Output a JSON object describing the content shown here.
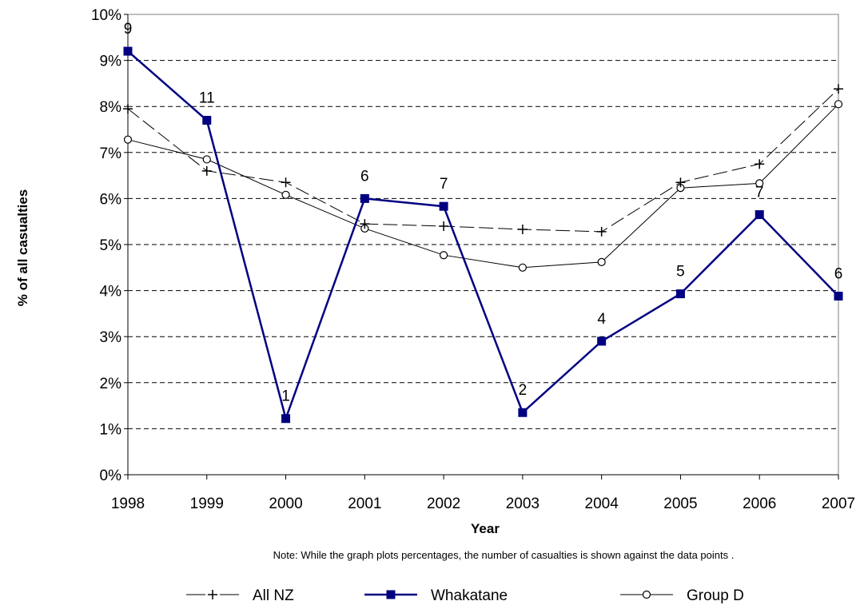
{
  "chart_data": {
    "type": "line",
    "title": "",
    "xlabel": "Year",
    "ylabel": "% of all casualties",
    "note": "Note: While the graph plots percentages, the number of casualties is shown against the data points .",
    "x": [
      1998,
      1999,
      2000,
      2001,
      2002,
      2003,
      2004,
      2005,
      2006,
      2007
    ],
    "x_tick_labels": [
      "1998",
      "1999",
      "2000",
      "2001",
      "2002",
      "2003",
      "2004",
      "2005",
      "2006",
      "2007"
    ],
    "ylim": [
      0,
      10
    ],
    "y_tick_labels": [
      "0%",
      "1%",
      "2%",
      "3%",
      "4%",
      "5%",
      "6%",
      "7%",
      "8%",
      "9%",
      "10%"
    ],
    "grid": "horizontal dashed",
    "legend_position": "bottom",
    "series": [
      {
        "name": "All NZ",
        "values": [
          7.95,
          6.6,
          6.35,
          5.45,
          5.4,
          5.33,
          5.28,
          6.35,
          6.75,
          8.38
        ],
        "color": "#000000",
        "marker": "plus",
        "line": "dashed"
      },
      {
        "name": "Whakatane",
        "values": [
          9.2,
          7.7,
          1.22,
          6.0,
          5.83,
          1.35,
          2.9,
          3.93,
          5.65,
          3.88
        ],
        "color": "#000080",
        "marker": "square",
        "line": "solid",
        "point_labels": [
          "9",
          "11",
          "1",
          "6",
          "7",
          "2",
          "4",
          "5",
          "7",
          "6"
        ]
      },
      {
        "name": "Group D",
        "values": [
          7.28,
          6.85,
          6.08,
          5.35,
          4.77,
          4.5,
          4.62,
          6.23,
          6.33,
          8.05
        ],
        "color": "#000000",
        "marker": "circle",
        "line": "solid"
      }
    ]
  }
}
